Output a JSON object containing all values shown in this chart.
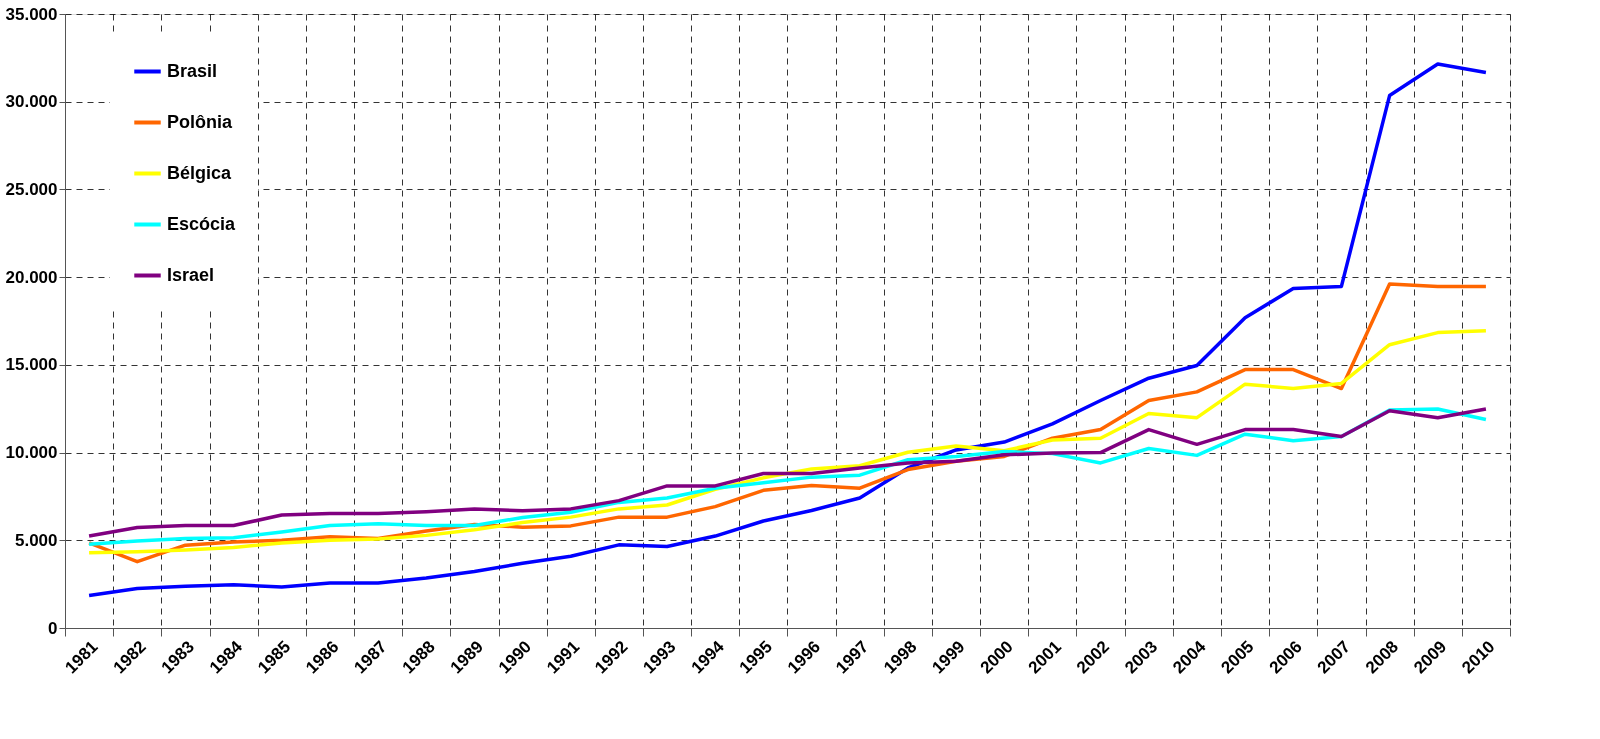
{
  "chart_data": {
    "type": "line",
    "categories": [
      "1981",
      "1982",
      "1983",
      "1984",
      "1985",
      "1986",
      "1987",
      "1988",
      "1989",
      "1990",
      "1991",
      "1992",
      "1993",
      "1994",
      "1995",
      "1996",
      "1997",
      "1998",
      "1999",
      "2000",
      "2001",
      "2002",
      "2003",
      "2004",
      "2005",
      "2006",
      "2007",
      "2008",
      "2009",
      "2010"
    ],
    "ylim": [
      0,
      35000
    ],
    "yticks": [
      {
        "value": 0,
        "label": "0"
      },
      {
        "value": 5000,
        "label": "5.000"
      },
      {
        "value": 10000,
        "label": "10.000"
      },
      {
        "value": 15000,
        "label": "15.000"
      },
      {
        "value": 20000,
        "label": "20.000"
      },
      {
        "value": 25000,
        "label": "25.000"
      },
      {
        "value": 30000,
        "label": "30.000"
      },
      {
        "value": 35000,
        "label": "35.000"
      }
    ],
    "grid": true,
    "legend": "top left",
    "marker": "none",
    "line_style": "solid",
    "series": [
      {
        "name": "Brasil",
        "color": "#0000ff",
        "values": [
          1850,
          2250,
          2380,
          2470,
          2340,
          2570,
          2570,
          2850,
          3220,
          3690,
          4090,
          4740,
          4650,
          5240,
          6100,
          6700,
          7410,
          9120,
          10150,
          10600,
          11640,
          12970,
          14240,
          14960,
          17690,
          19350,
          19470,
          30350,
          32150,
          31660
        ]
      },
      {
        "name": "Polônia",
        "color": "#ff6600",
        "values": [
          4850,
          3780,
          4720,
          4900,
          5000,
          5200,
          5100,
          5530,
          5900,
          5750,
          5820,
          6320,
          6320,
          6920,
          7850,
          8120,
          7970,
          9030,
          9500,
          9780,
          10820,
          11310,
          12970,
          13460,
          14730,
          14730,
          13650,
          19610,
          19470,
          19470
        ]
      },
      {
        "name": "Bélgica",
        "color": "#ffff00",
        "values": [
          4290,
          4350,
          4440,
          4590,
          4850,
          5000,
          5080,
          5280,
          5600,
          6010,
          6320,
          6790,
          7010,
          7910,
          8560,
          9070,
          9250,
          10020,
          10370,
          10100,
          10720,
          10820,
          12230,
          11990,
          13900,
          13650,
          13940,
          16150,
          16840,
          16950
        ]
      },
      {
        "name": "Escócia",
        "color": "#00ffff",
        "values": [
          4780,
          4960,
          5100,
          5150,
          5470,
          5840,
          5940,
          5840,
          5840,
          6300,
          6600,
          7160,
          7410,
          7970,
          8280,
          8600,
          8710,
          9590,
          9780,
          10060,
          9940,
          9410,
          10230,
          9840,
          11050,
          10680,
          10920,
          12420,
          12480,
          11890
        ]
      },
      {
        "name": "Israel",
        "color": "#800080",
        "values": [
          5240,
          5730,
          5840,
          5840,
          6440,
          6530,
          6530,
          6630,
          6780,
          6680,
          6790,
          7260,
          8100,
          8100,
          8810,
          8810,
          9120,
          9400,
          9500,
          9870,
          9980,
          10000,
          11310,
          10470,
          11310,
          11310,
          10920,
          12380,
          11990,
          12480
        ]
      }
    ]
  }
}
